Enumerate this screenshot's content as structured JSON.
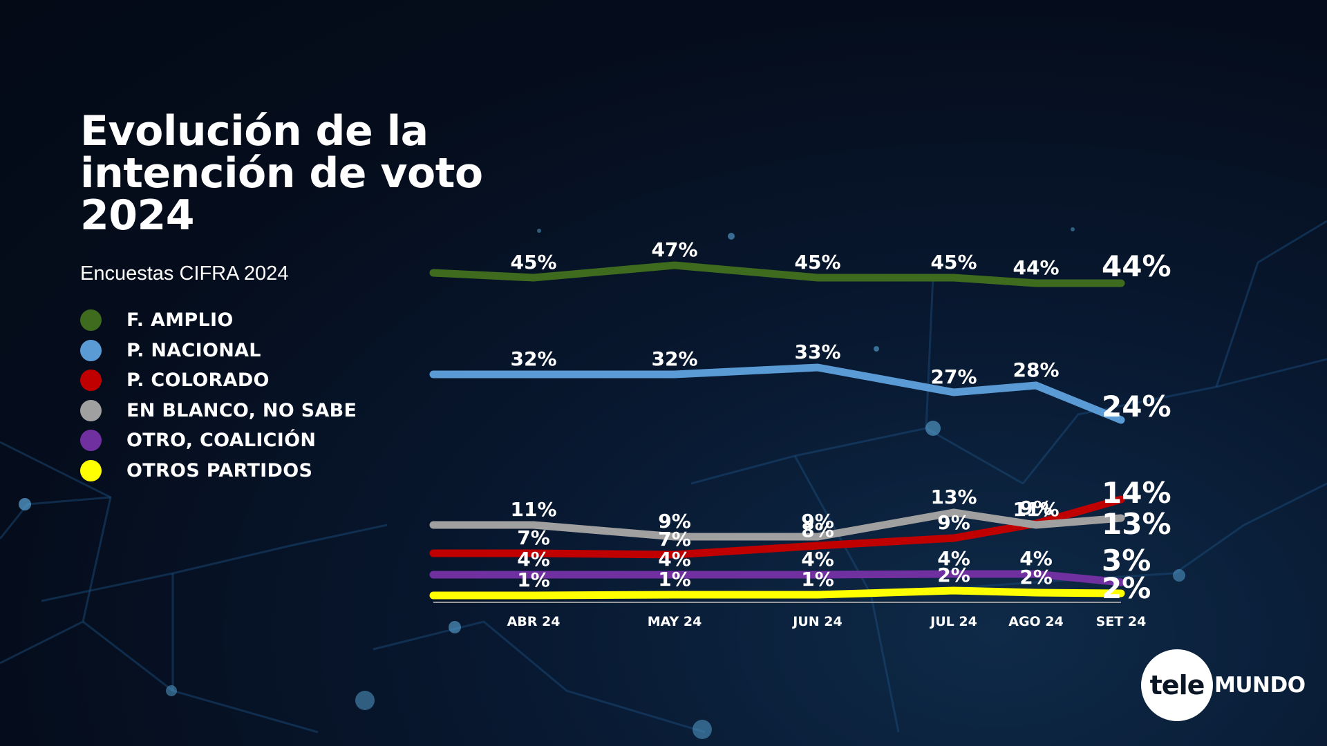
{
  "title_lines": [
    "Evolución de la",
    "intención de voto",
    "2024"
  ],
  "subtitle": "Encuestas CIFRA 2024",
  "legend": [
    {
      "label": "F. AMPLIO",
      "color": "#3f6b1f"
    },
    {
      "label": "P. NACIONAL",
      "color": "#5b9bd5"
    },
    {
      "label": "P. COLORADO",
      "color": "#c00000"
    },
    {
      "label": "EN BLANCO, NO SABE",
      "color": "#a0a0a0"
    },
    {
      "label": "OTRO, COALICIÓN",
      "color": "#7030a0"
    },
    {
      "label": "OTROS PARTIDOS",
      "color": "#ffff00"
    }
  ],
  "logo": {
    "part1": "tele",
    "part2": "MUNDO"
  },
  "chart_data": {
    "type": "line",
    "title": "Evolución de la intención de voto 2024",
    "subtitle": "Encuestas CIFRA 2024",
    "xlabel": "",
    "ylabel": "",
    "unit": "%",
    "categories": [
      "ABR 24",
      "MAY 24",
      "JUN 24",
      "JUL 24",
      "AGO 24",
      "SET 24"
    ],
    "grid": false,
    "legend_position": "left",
    "series": [
      {
        "name": "F. AMPLIO",
        "color": "#3f6b1f",
        "values": [
          45,
          47,
          45,
          45,
          44,
          44
        ]
      },
      {
        "name": "P. NACIONAL",
        "color": "#5b9bd5",
        "values": [
          32,
          32,
          33,
          27,
          28,
          24
        ]
      },
      {
        "name": "P. COLORADO",
        "color": "#c00000",
        "values": [
          7,
          7,
          8,
          9,
          9,
          14
        ]
      },
      {
        "name": "EN BLANCO, NO SABE",
        "color": "#a0a0a0",
        "values": [
          11,
          9,
          9,
          13,
          11,
          13
        ]
      },
      {
        "name": "OTRO, COALICIÓN",
        "color": "#7030a0",
        "values": [
          4,
          4,
          4,
          4,
          4,
          3
        ]
      },
      {
        "name": "OTROS PARTIDOS",
        "color": "#ffff00",
        "values": [
          1,
          1,
          1,
          2,
          2,
          2
        ]
      }
    ]
  }
}
